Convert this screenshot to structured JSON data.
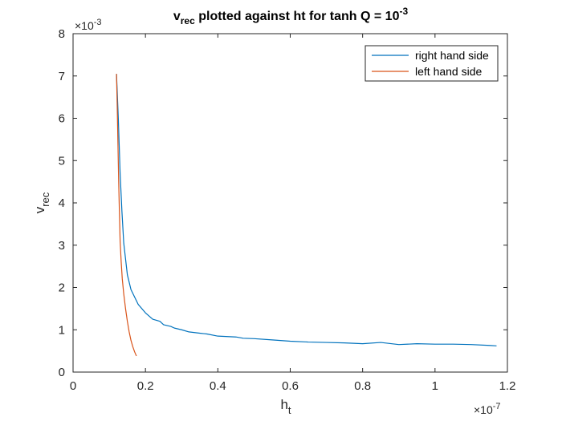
{
  "chart_data": {
    "type": "line",
    "title": {
      "v": "v",
      "v_sub": "rec",
      "mid": " plotted against ht for tanh Q = 10",
      "exp": "-3"
    },
    "xlabel": {
      "base": "h",
      "sub": "t"
    },
    "ylabel": {
      "base": "v",
      "sub": "rec"
    },
    "x_multiplier": {
      "prefix": "×10",
      "exp": "-7"
    },
    "y_multiplier": {
      "prefix": "×10",
      "exp": "-3"
    },
    "xlim": [
      0,
      1.2
    ],
    "ylim": [
      0,
      8
    ],
    "xticks": [
      0,
      0.2,
      0.4,
      0.6,
      0.8,
      1,
      1.2
    ],
    "xtick_labels": [
      "0",
      "0.2",
      "0.4",
      "0.6",
      "0.8",
      "1",
      "1.2"
    ],
    "yticks": [
      0,
      1,
      2,
      3,
      4,
      5,
      6,
      7,
      8
    ],
    "ytick_labels": [
      "0",
      "1",
      "2",
      "3",
      "4",
      "5",
      "6",
      "7",
      "8"
    ],
    "legend_position": "top-right",
    "series": [
      {
        "name": "right hand side",
        "color": "#0072BD",
        "x": [
          0.12,
          0.125,
          0.13,
          0.135,
          0.14,
          0.15,
          0.16,
          0.18,
          0.2,
          0.22,
          0.24,
          0.25,
          0.27,
          0.28,
          0.3,
          0.32,
          0.35,
          0.37,
          0.4,
          0.45,
          0.47,
          0.5,
          0.55,
          0.6,
          0.65,
          0.7,
          0.75,
          0.8,
          0.85,
          0.9,
          0.95,
          1.0,
          1.05,
          1.1,
          1.15,
          1.17
        ],
        "values": [
          7.05,
          6.0,
          4.7,
          3.8,
          3.05,
          2.3,
          1.95,
          1.6,
          1.4,
          1.25,
          1.2,
          1.12,
          1.08,
          1.04,
          1.0,
          0.95,
          0.92,
          0.9,
          0.85,
          0.83,
          0.8,
          0.79,
          0.76,
          0.73,
          0.71,
          0.7,
          0.69,
          0.67,
          0.7,
          0.65,
          0.67,
          0.66,
          0.66,
          0.65,
          0.63,
          0.62
        ]
      },
      {
        "name": "left hand side",
        "color": "#D95319",
        "x": [
          0.12,
          0.122,
          0.124,
          0.126,
          0.128,
          0.13,
          0.133,
          0.136,
          0.14,
          0.145,
          0.15,
          0.155,
          0.16,
          0.165,
          0.17,
          0.175
        ],
        "values": [
          7.05,
          6.3,
          5.4,
          4.5,
          3.8,
          3.1,
          2.6,
          2.2,
          1.85,
          1.5,
          1.2,
          0.95,
          0.75,
          0.6,
          0.48,
          0.38
        ]
      }
    ]
  }
}
